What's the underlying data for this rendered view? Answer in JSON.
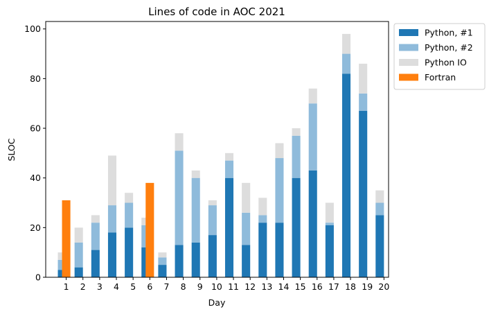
{
  "chart_data": {
    "type": "bar",
    "title": "Lines of code in AOC 2021",
    "xlabel": "Day",
    "ylabel": "SLOC",
    "ylim": [
      0,
      103
    ],
    "yticks": [
      0,
      20,
      40,
      60,
      80,
      100
    ],
    "grid": false,
    "legend_position": "outside-top-right",
    "categories": [
      "1",
      "2",
      "3",
      "4",
      "5",
      "6",
      "7",
      "8",
      "9",
      "10",
      "11",
      "12",
      "13",
      "14",
      "15",
      "16",
      "17",
      "18",
      "19",
      "20"
    ],
    "series": [
      {
        "name": "Python, #1",
        "color": "#1f77b4",
        "stack": "python",
        "values": [
          3,
          4,
          11,
          18,
          20,
          12,
          5,
          13,
          14,
          17,
          40,
          13,
          22,
          22,
          40,
          43,
          21,
          82,
          67,
          25
        ]
      },
      {
        "name": "Python, #2",
        "color": "#8fbbdb",
        "stack": "python",
        "values": [
          4,
          10,
          11,
          11,
          10,
          9,
          3,
          38,
          26,
          12,
          7,
          13,
          3,
          26,
          17,
          27,
          1,
          8,
          7,
          5
        ]
      },
      {
        "name": "Python IO",
        "color": "#dddddd",
        "stack": "python",
        "values": [
          3,
          6,
          3,
          20,
          4,
          3,
          2,
          7,
          3,
          2,
          3,
          12,
          7,
          6,
          3,
          6,
          8,
          8,
          12,
          5
        ]
      },
      {
        "name": "Fortran",
        "color": "#ff7f0e",
        "stack": "fortran",
        "values": [
          31,
          null,
          null,
          null,
          null,
          38,
          null,
          null,
          null,
          null,
          null,
          null,
          null,
          null,
          null,
          null,
          null,
          null,
          null,
          null
        ]
      }
    ]
  }
}
